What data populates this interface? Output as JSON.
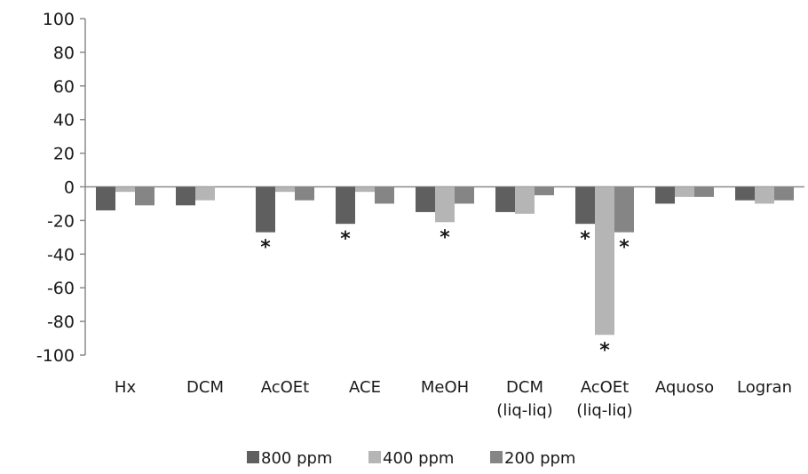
{
  "chart_data": {
    "type": "bar",
    "categories": [
      [
        "Hx"
      ],
      [
        "DCM"
      ],
      [
        "AcOEt"
      ],
      [
        "ACE"
      ],
      [
        "MeOH"
      ],
      [
        "DCM",
        "(liq-liq)"
      ],
      [
        "AcOEt",
        "(liq-liq)"
      ],
      [
        "Aquoso"
      ],
      [
        "Logran"
      ]
    ],
    "series": [
      {
        "name": "800 ppm",
        "color": "#5f5f5f",
        "values": [
          -14,
          -11,
          -27,
          -22,
          -15,
          -15,
          -22,
          -10,
          -8
        ]
      },
      {
        "name": "400 ppm",
        "color": "#b5b5b5",
        "values": [
          -3,
          -8,
          -3,
          -3,
          -21,
          -16,
          -88,
          -6,
          -10
        ]
      },
      {
        "name": "200 ppm",
        "color": "#858585",
        "values": [
          -11,
          0,
          -8,
          -10,
          -10,
          -5,
          -27,
          -6,
          -8
        ]
      }
    ],
    "significance_markers": [
      {
        "category_index": 2,
        "series_index": 0,
        "label": "*"
      },
      {
        "category_index": 3,
        "series_index": 0,
        "label": "*"
      },
      {
        "category_index": 4,
        "series_index": 1,
        "label": "*"
      },
      {
        "category_index": 6,
        "series_index": 0,
        "label": "*"
      },
      {
        "category_index": 6,
        "series_index": 1,
        "label": "*"
      },
      {
        "category_index": 6,
        "series_index": 2,
        "label": "*"
      }
    ],
    "yticks": [
      100,
      80,
      60,
      40,
      20,
      0,
      -20,
      -40,
      -60,
      -80,
      -100
    ],
    "ylim": [
      -100,
      100
    ],
    "grid": false,
    "legend_position": "bottom",
    "title": "",
    "xlabel": "",
    "ylabel": ""
  }
}
